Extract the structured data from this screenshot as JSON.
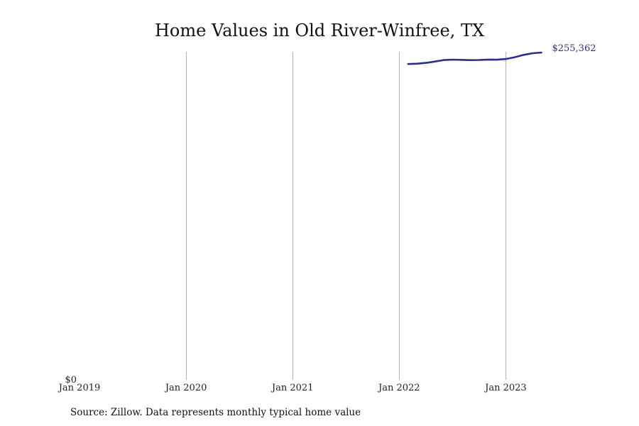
{
  "chart_data": {
    "type": "line",
    "title": "Home Values in Old River-Winfree, TX",
    "xlabel": "",
    "ylabel": "",
    "x_ticks": [
      {
        "date": "2019-01",
        "label": "Jan 2019"
      },
      {
        "date": "2020-01",
        "label": "Jan 2020"
      },
      {
        "date": "2021-01",
        "label": "Jan 2021"
      },
      {
        "date": "2022-01",
        "label": "Jan 2022"
      },
      {
        "date": "2023-01",
        "label": "Jan 2023"
      }
    ],
    "y_ticks": [
      {
        "value": 0,
        "label": "$0"
      }
    ],
    "xlim": [
      "2019-01",
      "2023-08"
    ],
    "ylim": [
      0,
      255362
    ],
    "grid": "vertical",
    "legend": "none",
    "series": [
      {
        "color": "#2d2e8c",
        "end_label": "$255,362",
        "points": [
          {
            "x": "2022-02",
            "y": 246380
          },
          {
            "x": "2022-03",
            "y": 246660
          },
          {
            "x": "2022-04",
            "y": 247300
          },
          {
            "x": "2022-05",
            "y": 248340
          },
          {
            "x": "2022-06",
            "y": 249500
          },
          {
            "x": "2022-07",
            "y": 249850
          },
          {
            "x": "2022-08",
            "y": 249630
          },
          {
            "x": "2022-09",
            "y": 249440
          },
          {
            "x": "2022-10",
            "y": 249570
          },
          {
            "x": "2022-11",
            "y": 249900
          },
          {
            "x": "2022-12",
            "y": 249750
          },
          {
            "x": "2023-01",
            "y": 250300
          },
          {
            "x": "2023-02",
            "y": 251730
          },
          {
            "x": "2023-03",
            "y": 253560
          },
          {
            "x": "2023-04",
            "y": 254810
          },
          {
            "x": "2023-05",
            "y": 255362
          }
        ]
      }
    ]
  },
  "source_note": "Source: Zillow. Data represents monthly typical home value"
}
